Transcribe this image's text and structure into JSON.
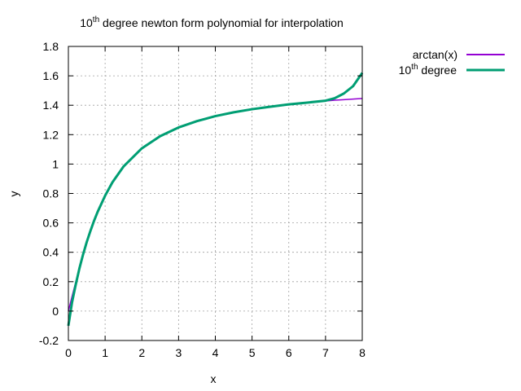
{
  "chart_data": {
    "type": "line",
    "title": {
      "base": "10",
      "sup": "th",
      "rest": " degree newton form polynomial for interpolation"
    },
    "xlabel": "x",
    "ylabel": "y",
    "xlim": [
      0,
      8
    ],
    "ylim": [
      -0.2,
      1.8
    ],
    "xticks": [
      0,
      1,
      2,
      3,
      4,
      5,
      6,
      7,
      8
    ],
    "yticks": [
      -0.2,
      0,
      0.2,
      0.4,
      0.6,
      0.8,
      1,
      1.2,
      1.4,
      1.6,
      1.8
    ],
    "ytick_labels": [
      "-0.2",
      "0",
      "0.2",
      "0.4",
      "0.6",
      "0.8",
      "1",
      "1.2",
      "1.4",
      "1.6",
      "1.8"
    ],
    "grid": true,
    "legend_position": "outside-right-top",
    "series": [
      {
        "name": "arctan(x)",
        "color": "#9400d3",
        "x": [
          0,
          0.1,
          0.2,
          0.3,
          0.4,
          0.5,
          0.6,
          0.7,
          0.8,
          1,
          1.2,
          1.5,
          2,
          2.5,
          3,
          3.5,
          4,
          4.5,
          5,
          5.5,
          6,
          6.5,
          7,
          7.25,
          7.5,
          7.75,
          8
        ],
        "y": [
          0,
          0.1,
          0.197,
          0.291,
          0.381,
          0.464,
          0.54,
          0.611,
          0.675,
          0.785,
          0.876,
          0.983,
          1.107,
          1.19,
          1.249,
          1.292,
          1.326,
          1.352,
          1.373,
          1.39,
          1.406,
          1.418,
          1.429,
          1.434,
          1.438,
          1.442,
          1.446
        ]
      },
      {
        "name": {
          "base": "10",
          "sup": "th",
          "rest": " degree"
        },
        "color": "#009e73",
        "x": [
          0,
          0.1,
          0.2,
          0.3,
          0.4,
          0.5,
          0.6,
          0.7,
          0.8,
          1,
          1.2,
          1.5,
          2,
          2.5,
          3,
          3.5,
          4,
          4.5,
          5,
          5.5,
          6,
          6.5,
          7,
          7.25,
          7.5,
          7.75,
          8
        ],
        "y": [
          -0.1,
          0.06,
          0.18,
          0.29,
          0.385,
          0.47,
          0.545,
          0.615,
          0.677,
          0.785,
          0.876,
          0.983,
          1.107,
          1.19,
          1.249,
          1.292,
          1.326,
          1.352,
          1.373,
          1.39,
          1.406,
          1.418,
          1.431,
          1.448,
          1.48,
          1.53,
          1.62
        ]
      }
    ]
  }
}
